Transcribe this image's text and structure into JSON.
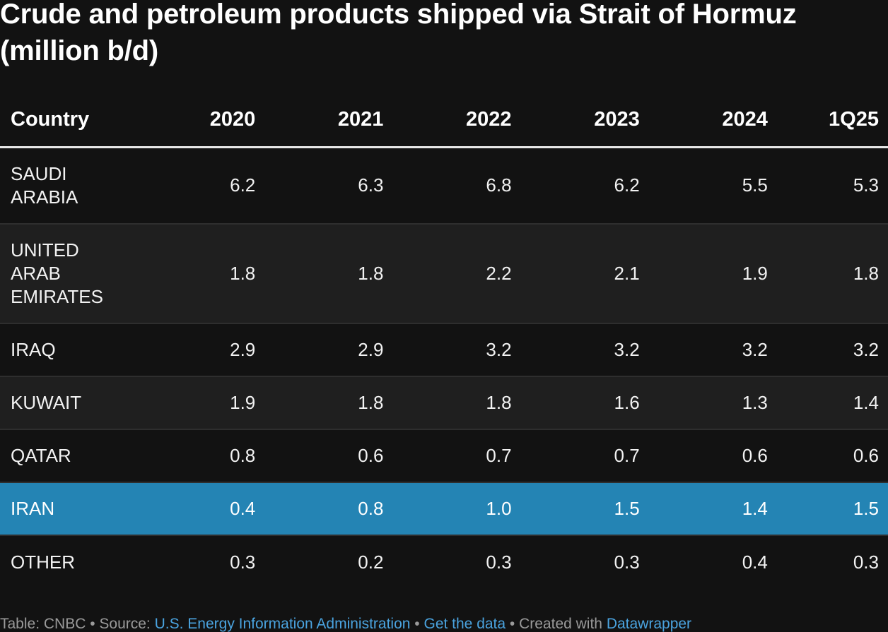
{
  "title": "Crude and petroleum products shipped via Strait of Hormuz (million b/d)",
  "chart_data": {
    "type": "table",
    "title": "Crude and petroleum products shipped via Strait of Hormuz (million b/d)",
    "columns": [
      "Country",
      "2020",
      "2021",
      "2022",
      "2023",
      "2024",
      "1Q25"
    ],
    "rows": [
      {
        "country": "SAUDI ARABIA",
        "values": [
          "6.2",
          "6.3",
          "6.8",
          "6.2",
          "5.5",
          "5.3"
        ],
        "highlight": false
      },
      {
        "country": "UNITED ARAB EMIRATES",
        "values": [
          "1.8",
          "1.8",
          "2.2",
          "2.1",
          "1.9",
          "1.8"
        ],
        "highlight": false
      },
      {
        "country": "IRAQ",
        "values": [
          "2.9",
          "2.9",
          "3.2",
          "3.2",
          "3.2",
          "3.2"
        ],
        "highlight": false
      },
      {
        "country": "KUWAIT",
        "values": [
          "1.9",
          "1.8",
          "1.8",
          "1.6",
          "1.3",
          "1.4"
        ],
        "highlight": false
      },
      {
        "country": "QATAR",
        "values": [
          "0.8",
          "0.6",
          "0.7",
          "0.7",
          "0.6",
          "0.6"
        ],
        "highlight": false
      },
      {
        "country": "IRAN",
        "values": [
          "0.4",
          "0.8",
          "1.0",
          "1.5",
          "1.4",
          "1.5"
        ],
        "highlight": true
      },
      {
        "country": "OTHER",
        "values": [
          "0.3",
          "0.2",
          "0.3",
          "0.3",
          "0.4",
          "0.3"
        ],
        "highlight": false
      }
    ]
  },
  "colors": {
    "background": "#121212",
    "row_alt": "#1f1f1f",
    "highlight": "#2484b4",
    "link": "#4aa3df",
    "footer_text": "#9a9a9a"
  },
  "footer": {
    "prefix": "Table: CNBC • Source: ",
    "source_link": "U.S. Energy Information Administration",
    "separator": " • ",
    "data_link": "Get the data",
    "created_text": " • Created with ",
    "tool_link": "Datawrapper"
  }
}
